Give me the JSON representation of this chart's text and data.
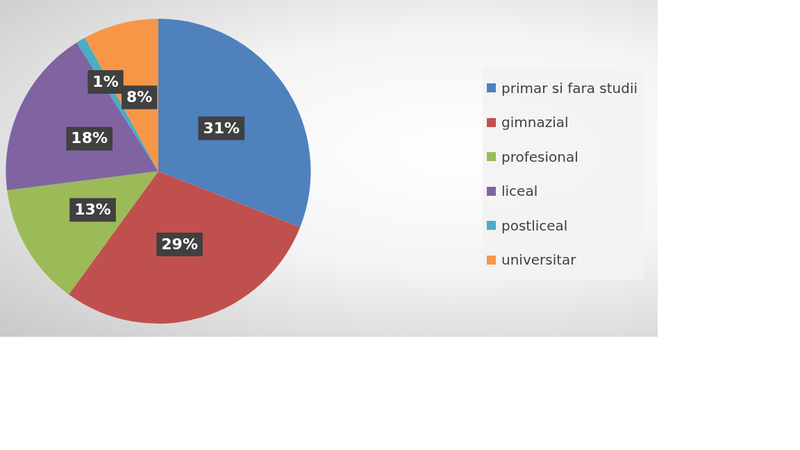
{
  "chart_data": {
    "type": "pie",
    "categories": [
      "primar si fara studii",
      "gimnazial",
      "profesional",
      "liceal",
      "postliceal",
      "universitar"
    ],
    "values": [
      31,
      29,
      13,
      18,
      1,
      8
    ],
    "colors": [
      "#4f81bd",
      "#c0504d",
      "#9bbb59",
      "#8064a2",
      "#4bacc6",
      "#f79646"
    ],
    "value_labels": [
      "31%",
      "29%",
      "13%",
      "18%",
      "1%",
      "8%"
    ],
    "legend": "right"
  }
}
